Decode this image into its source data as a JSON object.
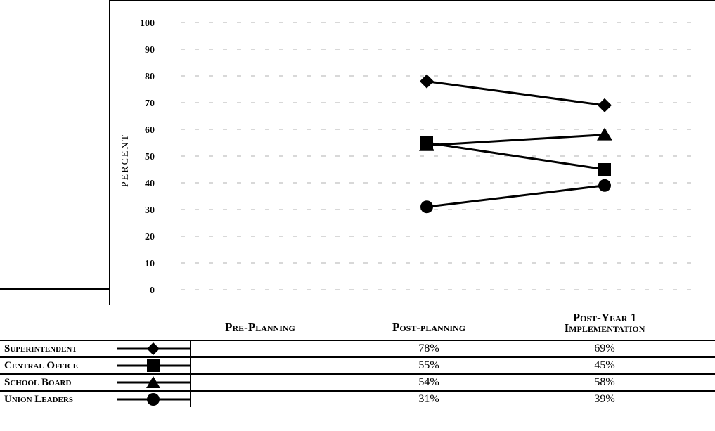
{
  "chart_data": {
    "type": "line",
    "categories": [
      "Pre-Planning",
      "Post-planning",
      "Post-Year 1 Implementation"
    ],
    "category_labels": [
      {
        "line1": "Pre-Planning",
        "line2": ""
      },
      {
        "line1": "Post-planning",
        "line2": ""
      },
      {
        "line1": "Post-Year 1",
        "line2": "Implementation"
      }
    ],
    "ylabel": "PERCENT",
    "ylim": [
      0,
      100
    ],
    "yticks": [
      "0",
      "10",
      "20",
      "30",
      "40",
      "50",
      "60",
      "70",
      "80",
      "90",
      "100"
    ],
    "grid": true,
    "legend": "table-left",
    "series": [
      {
        "name": "Superintendent",
        "marker": "diamond",
        "values": [
          null,
          78,
          69
        ],
        "labels": [
          "",
          "78%",
          "69%"
        ]
      },
      {
        "name": "Central Office",
        "marker": "square",
        "values": [
          null,
          55,
          45
        ],
        "labels": [
          "",
          "55%",
          "45%"
        ]
      },
      {
        "name": "School Board",
        "marker": "triangle",
        "values": [
          null,
          54,
          58
        ],
        "labels": [
          "",
          "54%",
          "58%"
        ]
      },
      {
        "name": "Union Leaders",
        "marker": "circle",
        "values": [
          null,
          31,
          39
        ],
        "labels": [
          "",
          "31%",
          "39%"
        ]
      }
    ],
    "colors": {
      "line": "#000000",
      "grid": "#b0b0b0"
    }
  }
}
